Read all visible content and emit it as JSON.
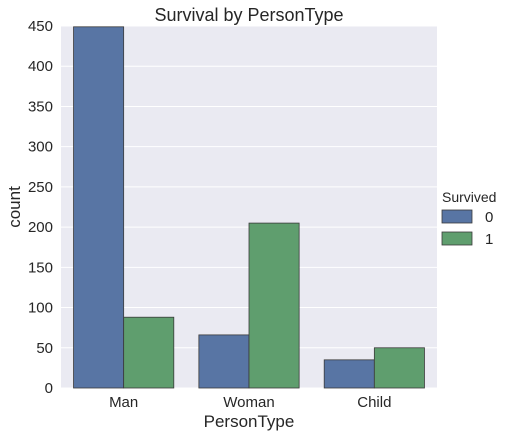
{
  "chart_data": {
    "type": "bar",
    "title": "Survival by PersonType",
    "xlabel": "PersonType",
    "ylabel": "count",
    "categories": [
      "Man",
      "Woman",
      "Child"
    ],
    "ylim": [
      0,
      450
    ],
    "yticks": [
      0,
      50,
      100,
      150,
      200,
      250,
      300,
      350,
      400,
      450
    ],
    "grid": true,
    "legend": {
      "title": "Survived",
      "placement": "right"
    },
    "series": [
      {
        "name": "0",
        "color": "#5875a4",
        "values": [
          449,
          66,
          35
        ]
      },
      {
        "name": "1",
        "color": "#5f9e6e",
        "values": [
          88,
          205,
          50
        ]
      }
    ]
  }
}
